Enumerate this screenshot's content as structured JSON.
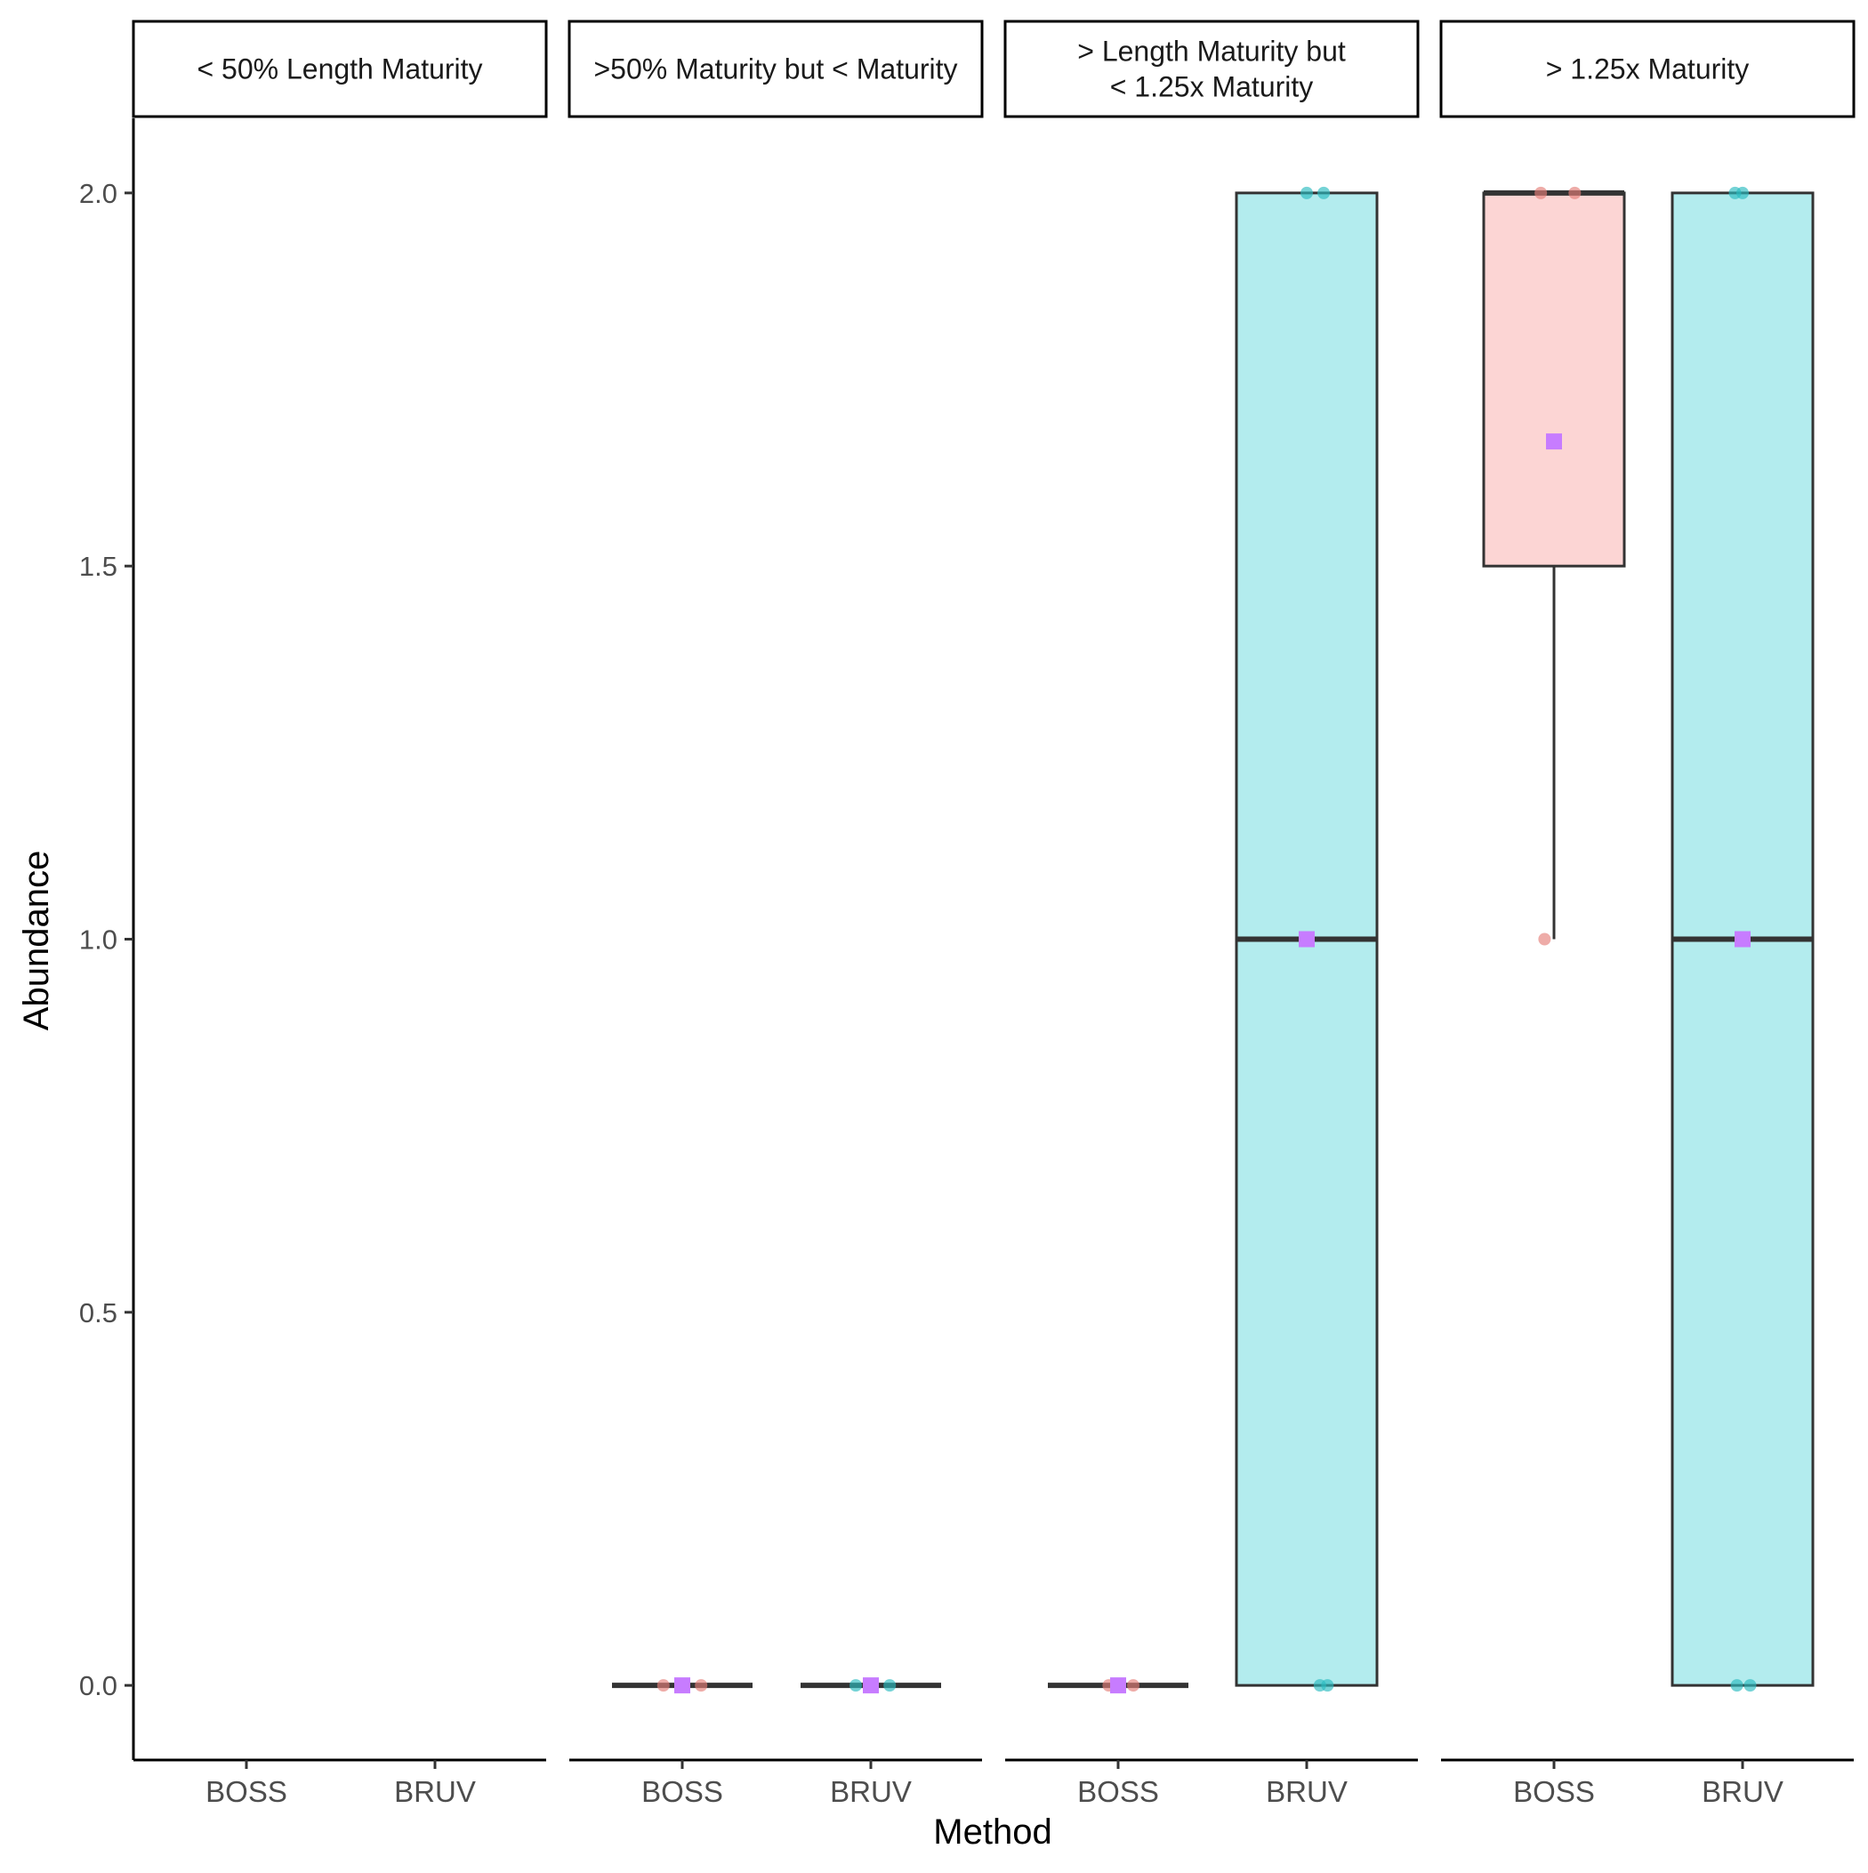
{
  "chart_data": {
    "type": "boxplot",
    "xlabel": "Method",
    "ylabel": "Abundance",
    "ylim": [
      -0.1,
      2.1
    ],
    "y_ticks": [
      0.0,
      0.5,
      1.0,
      1.5,
      2.0
    ],
    "y_tick_labels": [
      "0.0",
      "0.5",
      "1.0",
      "1.5",
      "2.0"
    ],
    "categories": [
      "BOSS",
      "BRUV"
    ],
    "legend": "none",
    "grid": false,
    "colors": {
      "BOSS_fill": "#fcd5d4",
      "BRUV_fill": "#b3ecee",
      "BOSS_point": "#e57f7a",
      "BRUV_point": "#2bbcc0",
      "mean_marker": "#c77cff",
      "box_stroke": "#333333"
    },
    "panels": [
      {
        "title_lines": [
          "< 50% Length Maturity"
        ],
        "boxes": []
      },
      {
        "title_lines": [
          ">50% Maturity but < Maturity"
        ],
        "boxes": [
          {
            "method": "BOSS",
            "min": 0,
            "q1": 0,
            "median": 0,
            "q3": 0,
            "max": 0,
            "mean": 0,
            "points": [
              {
                "x": -0.1,
                "y": 0
              },
              {
                "x": 0.1,
                "y": 0
              }
            ]
          },
          {
            "method": "BRUV",
            "min": 0,
            "q1": 0,
            "median": 0,
            "q3": 0,
            "max": 0,
            "mean": 0,
            "points": [
              {
                "x": -0.08,
                "y": 0
              },
              {
                "x": 0.1,
                "y": 0
              }
            ]
          }
        ]
      },
      {
        "title_lines": [
          "> Length Maturity but",
          "< 1.25x Maturity"
        ],
        "boxes": [
          {
            "method": "BOSS",
            "min": 0,
            "q1": 0,
            "median": 0,
            "q3": 0,
            "max": 0,
            "mean": 0,
            "points": [
              {
                "x": -0.05,
                "y": 0
              },
              {
                "x": 0.08,
                "y": 0
              }
            ]
          },
          {
            "method": "BRUV",
            "min": 0,
            "q1": 0,
            "median": 1,
            "q3": 2,
            "max": 2,
            "mean": 1,
            "points": [
              {
                "x": 0.0,
                "y": 2
              },
              {
                "x": 0.09,
                "y": 2
              },
              {
                "x": 0.07,
                "y": 0
              },
              {
                "x": 0.11,
                "y": 0
              }
            ]
          }
        ]
      },
      {
        "title_lines": [
          "> 1.25x Maturity"
        ],
        "boxes": [
          {
            "method": "BOSS",
            "min": 1,
            "q1": 1.5,
            "median": 2,
            "q3": 2,
            "max": 2,
            "mean": 1.667,
            "points": [
              {
                "x": -0.07,
                "y": 2
              },
              {
                "x": 0.11,
                "y": 2
              },
              {
                "x": -0.05,
                "y": 1
              }
            ]
          },
          {
            "method": "BRUV",
            "min": 0,
            "q1": 0,
            "median": 1,
            "q3": 2,
            "max": 2,
            "mean": 1,
            "points": [
              {
                "x": -0.04,
                "y": 2
              },
              {
                "x": 0.0,
                "y": 2
              },
              {
                "x": -0.03,
                "y": 0
              },
              {
                "x": 0.04,
                "y": 0
              }
            ]
          }
        ]
      }
    ]
  }
}
